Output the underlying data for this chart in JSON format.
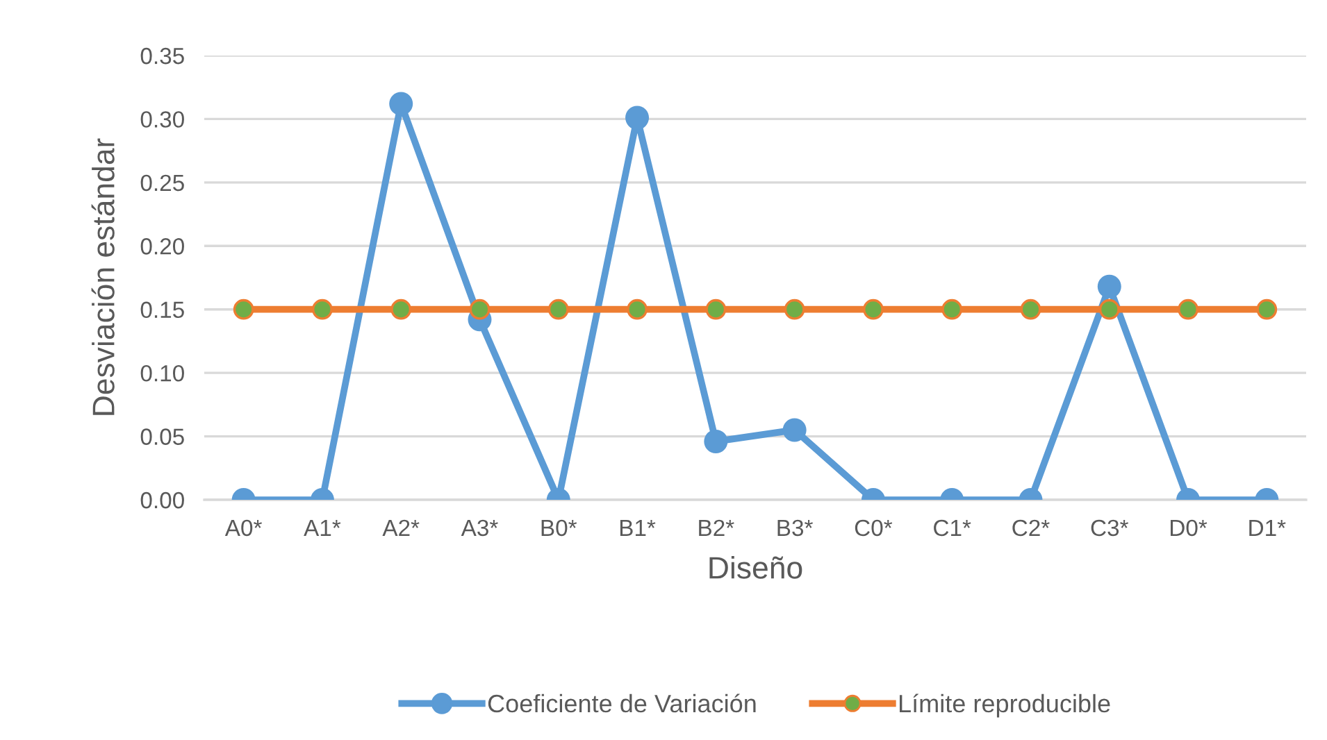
{
  "chart_data": {
    "type": "line",
    "xlabel": "Diseño",
    "ylabel": "Desviación estándar",
    "categories": [
      "A0*",
      "A1*",
      "A2*",
      "A3*",
      "B0*",
      "B1*",
      "B2*",
      "B3*",
      "C0*",
      "C1*",
      "C2*",
      "C3*",
      "D0*",
      "D1*"
    ],
    "series": [
      {
        "name": "Coeficiente de Variación",
        "color": "#5b9bd5",
        "values": [
          0,
          0,
          0.312,
          0.142,
          0,
          0.301,
          0.046,
          0.055,
          0,
          0,
          0,
          0.168,
          0,
          0
        ]
      },
      {
        "name": "Límite reproducible",
        "color": "#ed7d31",
        "colors": [
          "#70ad47",
          "#70ad47",
          "#70ad47",
          "#70ad47",
          "#70ad47",
          "#70ad47",
          "#70ad47",
          "#70ad47",
          "#70ad47",
          "#70ad47",
          "#70ad47",
          "#70ad47",
          "#70ad47",
          "#70ad47"
        ],
        "values": [
          0.15,
          0.15,
          0.15,
          0.15,
          0.15,
          0.15,
          0.15,
          0.15,
          0.15,
          0.15,
          0.15,
          0.15,
          0.15,
          0.15
        ]
      }
    ],
    "ylim": [
      0,
      0.35
    ],
    "yticks": [
      {
        "value": 0,
        "label": "0.00"
      },
      {
        "value": 0.05,
        "label": "0.05"
      },
      {
        "value": 0.1,
        "label": "0.10"
      },
      {
        "value": 0.15,
        "label": "0.15"
      },
      {
        "value": 0.2,
        "label": "0.20"
      },
      {
        "value": 0.25,
        "label": "0.25"
      },
      {
        "value": 0.3,
        "label": "0.30"
      },
      {
        "value": 0.35,
        "label": "0.35"
      }
    ],
    "grid": "y",
    "legend": "bottom",
    "marker": "circle",
    "line_style": "solid"
  }
}
